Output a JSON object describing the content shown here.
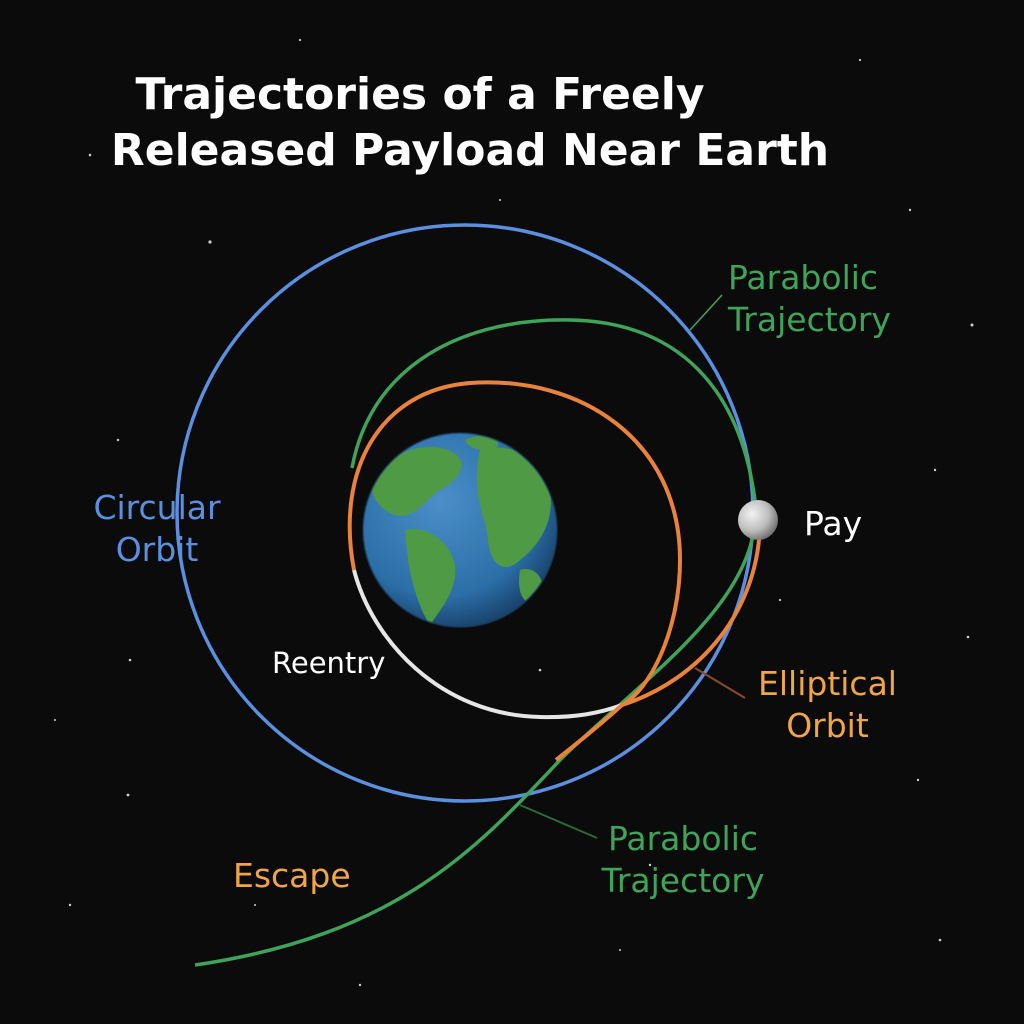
{
  "title": {
    "line1": "Trajectories of a Freely",
    "line2": "Released Payload Near Earth"
  },
  "labels": {
    "parabolic_top": {
      "line1": "Parabolic",
      "line2": "Trajectory"
    },
    "circular": {
      "line1": "Circular",
      "line2": "Orbit"
    },
    "payload": "Pay",
    "reentry": "Reentry",
    "elliptical": {
      "line1": "Elliptical",
      "line2": "Orbit"
    },
    "parabolic_bottom": {
      "line1": "Parabolic",
      "line2": "Trajectory"
    },
    "escape": "Escape"
  },
  "colors": {
    "background": "#0b0b0b",
    "circular_orbit": "#5b8fe0",
    "parabolic_trajectory": "#3fa35a",
    "elliptical_orbit": "#e9823a",
    "elliptical_label": "#f0a546",
    "escape_label": "#f0a546",
    "reentry_path": "#e6e6e6",
    "text_white": "#ffffff",
    "earth_ocean": "#2c6fa8",
    "earth_land": "#4f9a45",
    "payload": "#bdbdbd"
  },
  "icons": {
    "earth": "earth-globe-icon",
    "payload": "payload-sphere-icon"
  }
}
